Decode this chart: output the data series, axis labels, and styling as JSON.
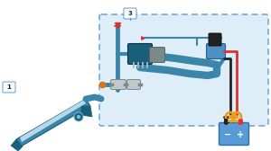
{
  "bg_color": "#ffffff",
  "box_fill": "#ddeef8",
  "box_edge": "#5b9bd5",
  "teal": "#3a85a8",
  "teal_dark": "#1a5f7a",
  "teal_light": "#7bbdd4",
  "red": "#e03030",
  "black": "#222222",
  "orange": "#e8a020",
  "grey": "#7a8a8a",
  "label1": "1",
  "label3": "3"
}
